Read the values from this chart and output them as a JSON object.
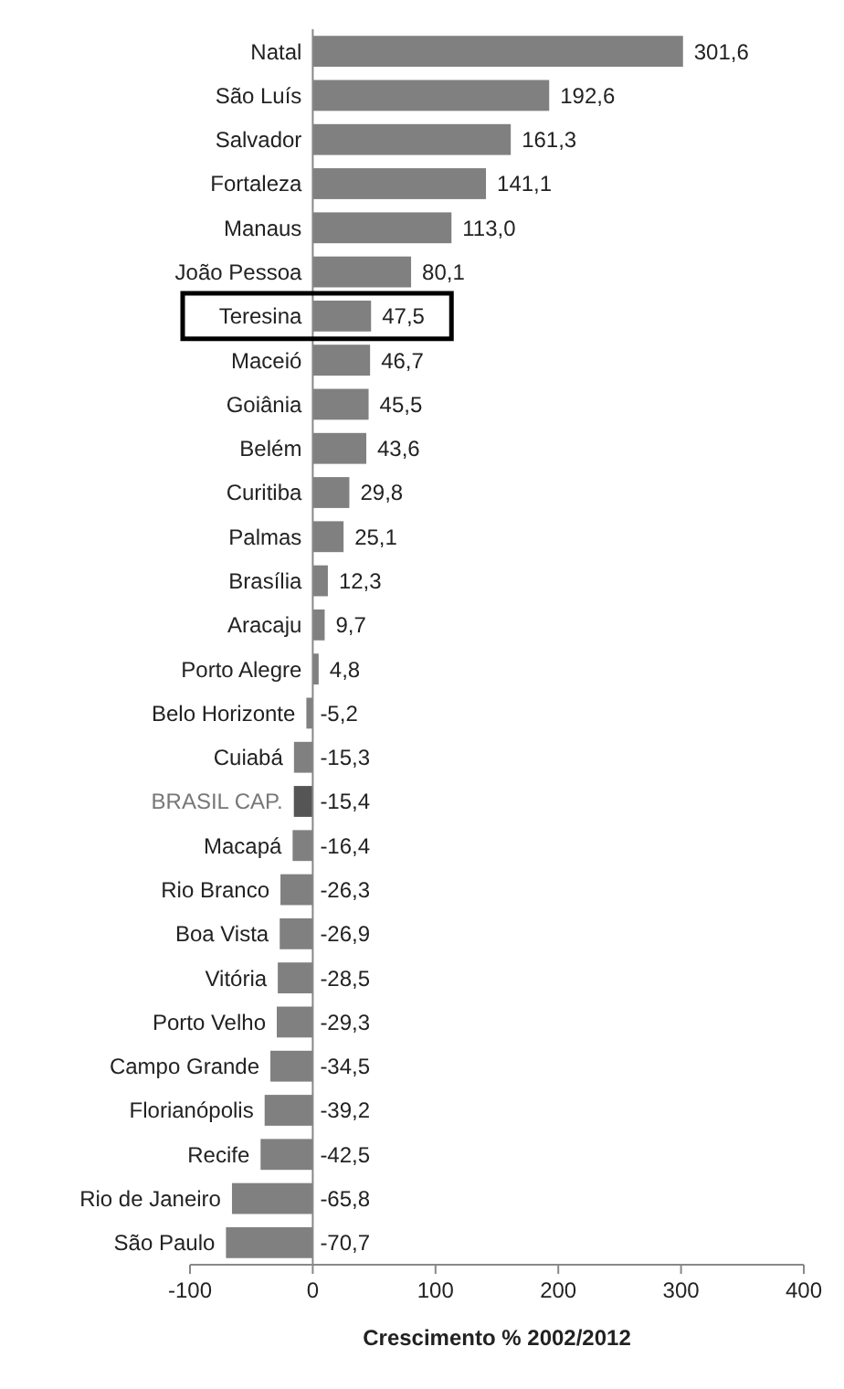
{
  "chart_data": {
    "type": "bar",
    "orientation": "horizontal",
    "xlabel": "Crescimento % 2002/2012",
    "categories": [
      "Natal",
      "São Luís",
      "Salvador",
      "Fortaleza",
      "Manaus",
      "João Pessoa",
      "Teresina",
      "Maceió",
      "Goiânia",
      "Belém",
      "Curitiba",
      "Palmas",
      "Brasília",
      "Aracaju",
      "Porto Alegre",
      "Belo Horizonte",
      "Cuiabá",
      "BRASIL CAP.",
      "Macapá",
      "Rio Branco",
      "Boa Vista",
      "Vitória",
      "Porto Velho",
      "Campo Grande",
      "Florianópolis",
      "Recife",
      "Rio de Janeiro",
      "São Paulo"
    ],
    "values": [
      301.6,
      192.6,
      161.3,
      141.1,
      113.0,
      80.1,
      47.5,
      46.7,
      45.5,
      43.6,
      29.8,
      25.1,
      12.3,
      9.7,
      4.8,
      -5.2,
      -15.3,
      -15.4,
      -16.4,
      -26.3,
      -26.9,
      -28.5,
      -29.3,
      -34.5,
      -39.2,
      -42.5,
      -65.8,
      -70.7
    ],
    "value_labels": [
      "301,6",
      "192,6",
      "161,3",
      "141,1",
      "113,0",
      "80,1",
      "47,5",
      "46,7",
      "45,5",
      "43,6",
      "29,8",
      "25,1",
      "12,3",
      "9,7",
      "4,8",
      "-5,2",
      "-15,3",
      "-15,4",
      "-16,4",
      "-26,3",
      "-26,9",
      "-28,5",
      "-29,3",
      "-34,5",
      "-39,2",
      "-42,5",
      "-65,8",
      "-70,7"
    ],
    "colors": [
      "#808080",
      "#808080",
      "#808080",
      "#808080",
      "#808080",
      "#808080",
      "#808080",
      "#808080",
      "#808080",
      "#808080",
      "#808080",
      "#808080",
      "#808080",
      "#808080",
      "#808080",
      "#808080",
      "#808080",
      "#555555",
      "#808080",
      "#808080",
      "#808080",
      "#808080",
      "#808080",
      "#808080",
      "#808080",
      "#808080",
      "#808080",
      "#808080"
    ],
    "xlim": [
      -100,
      400
    ],
    "xticks": [
      -100,
      0,
      100,
      200,
      300,
      400
    ],
    "grid": false
  }
}
